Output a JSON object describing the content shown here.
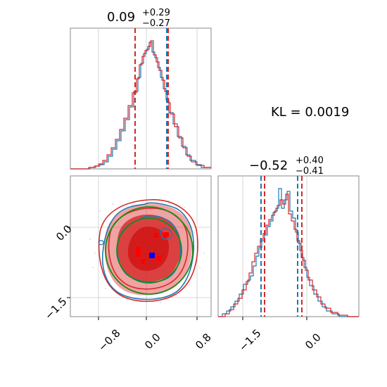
{
  "chart_data": {
    "type": "corner",
    "panel_1d_x": {
      "title_main": "0.09",
      "title_plus": "+0.29",
      "title_minus": "−0.27",
      "xlim": [
        -1.2,
        1.0
      ],
      "quantile_lines_red": [
        -0.18,
        0.38
      ],
      "quantile_lines_blue": [
        -0.18,
        0.37
      ]
    },
    "panel_1d_y": {
      "title_main": "−0.52",
      "title_plus": "+0.40",
      "title_minus": "−0.41",
      "xlim": [
        -1.9,
        0.9
      ],
      "quantile_lines_red": [
        -0.93,
        -0.12
      ],
      "quantile_lines_blue": [
        -1.0,
        -0.2
      ]
    },
    "panel_2d": {
      "xlim": [
        -1.2,
        1.0
      ],
      "ylim": [
        -1.9,
        0.9
      ],
      "x_ticks": [
        "−0.8",
        "0.0",
        "0.8"
      ],
      "y_ticks": [
        "0.0",
        "−1.5"
      ],
      "point_estimate_blue": [
        0.09,
        -0.6
      ]
    },
    "x_ticks_right": [
      "−1.5",
      "0.0"
    ],
    "kl_label": "KL = 0.0019",
    "colors": {
      "red": "#d62728",
      "blue": "#1f77b4",
      "green": "#2ca02c",
      "fill": "#e03030"
    }
  }
}
